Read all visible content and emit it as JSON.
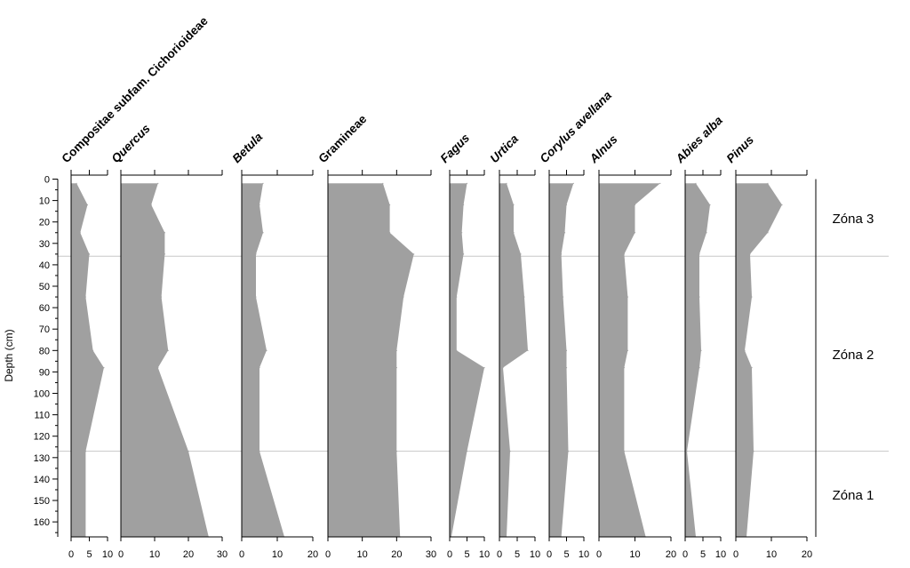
{
  "chart_data": {
    "type": "area",
    "title": "",
    "ylabel": "Depth (cm)",
    "ylim": [
      0,
      167
    ],
    "yticks": [
      0,
      10,
      20,
      30,
      40,
      50,
      60,
      70,
      80,
      90,
      100,
      110,
      120,
      130,
      140,
      150,
      160
    ],
    "fill_color": "#a0a0a0",
    "depths": [
      2,
      12,
      25,
      35,
      55,
      80,
      88,
      127,
      167
    ],
    "series": [
      {
        "name": "Compositae subfam. Cichorioideae",
        "italic": false,
        "xmax": 10,
        "xticks": [
          0,
          5,
          10
        ],
        "values": [
          1.5,
          4.5,
          2.5,
          5,
          4,
          6,
          9,
          4,
          4
        ]
      },
      {
        "name": "Quercus",
        "italic": true,
        "xmax": 30,
        "xticks": [
          0,
          10,
          20,
          30
        ],
        "values": [
          11,
          9,
          13,
          13,
          12,
          14,
          11,
          20,
          26
        ]
      },
      {
        "name": "Betula",
        "italic": true,
        "xmax": 20,
        "xticks": [
          0,
          10,
          20
        ],
        "values": [
          6,
          5,
          6,
          4,
          4,
          7,
          5,
          5,
          12
        ]
      },
      {
        "name": "Gramineae",
        "italic": false,
        "xmax": 30,
        "xticks": [
          0,
          10,
          20,
          30
        ],
        "values": [
          16,
          18,
          18,
          25,
          22,
          20,
          20,
          20,
          21
        ]
      },
      {
        "name": "Fagus",
        "italic": true,
        "xmax": 10,
        "xticks": [
          0,
          5,
          10
        ],
        "values": [
          5,
          4,
          3.5,
          4,
          2,
          2,
          10,
          5,
          0.5
        ]
      },
      {
        "name": "Urtica",
        "italic": true,
        "xmax": 10,
        "xticks": [
          0,
          5,
          10
        ],
        "values": [
          2,
          4,
          4,
          6,
          7,
          8,
          1,
          3,
          2
        ]
      },
      {
        "name": "Corylus avellana",
        "italic": true,
        "xmax": 10,
        "xticks": [
          0,
          5,
          10
        ],
        "values": [
          7,
          5,
          4.5,
          3.5,
          4,
          5,
          5,
          5.5,
          3.5
        ]
      },
      {
        "name": "Alnus",
        "italic": true,
        "xmax": 20,
        "xticks": [
          0,
          10,
          20
        ],
        "values": [
          17,
          10,
          10,
          7,
          8,
          8,
          7,
          7,
          13
        ]
      },
      {
        "name": "Abies alba",
        "italic": true,
        "xmax": 10,
        "xticks": [
          0,
          5,
          10
        ],
        "values": [
          3,
          7,
          6,
          4,
          4,
          4.5,
          4,
          0.5,
          3
        ]
      },
      {
        "name": "Pinus",
        "italic": true,
        "xmax": 20,
        "xticks": [
          0,
          10,
          20
        ],
        "values": [
          9,
          13,
          9,
          4,
          4.5,
          2.5,
          4.5,
          5,
          3
        ]
      }
    ],
    "zones": [
      {
        "label": "Zóna 3",
        "top": 0,
        "bottom": 36
      },
      {
        "label": "Zóna 2",
        "top": 36,
        "bottom": 127
      },
      {
        "label": "Zóna 1",
        "top": 127,
        "bottom": 167
      }
    ],
    "zone_boundaries": [
      36,
      127
    ]
  }
}
